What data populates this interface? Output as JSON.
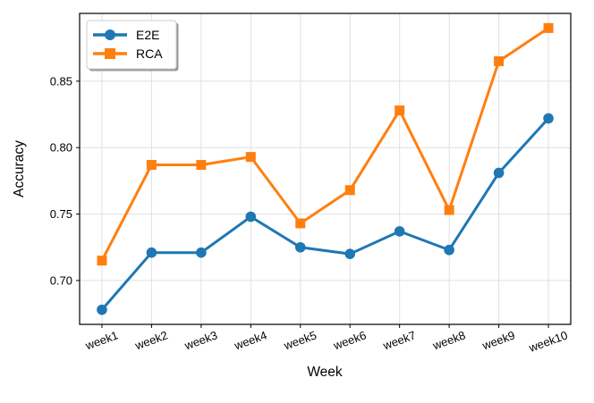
{
  "chart_data": {
    "type": "line",
    "title": "",
    "xlabel": "Week",
    "ylabel": "Accuracy",
    "categories": [
      "week1",
      "week2",
      "week3",
      "week4",
      "week5",
      "week6",
      "week7",
      "week8",
      "week9",
      "week10"
    ],
    "series": [
      {
        "name": "E2E",
        "color": "#1f77b4",
        "marker": "circle",
        "values": [
          0.678,
          0.721,
          0.721,
          0.748,
          0.725,
          0.72,
          0.737,
          0.723,
          0.781,
          0.822
        ]
      },
      {
        "name": "RCA",
        "color": "#ff7f0e",
        "marker": "square",
        "values": [
          0.715,
          0.787,
          0.787,
          0.793,
          0.743,
          0.768,
          0.828,
          0.753,
          0.865,
          0.89
        ]
      }
    ],
    "yticks": [
      0.7,
      0.75,
      0.8,
      0.85
    ],
    "ytick_labels": [
      "0.70",
      "0.75",
      "0.80",
      "0.85"
    ],
    "ylim": [
      0.667,
      0.901
    ],
    "grid": true,
    "legend_position": "upper left",
    "colors": {
      "grid": "#e0e0e0",
      "spine": "#000000",
      "background": "#ffffff",
      "legend_border": "#cccccc",
      "legend_shadow": "#999999",
      "legend_fill": "#ffffff"
    }
  }
}
